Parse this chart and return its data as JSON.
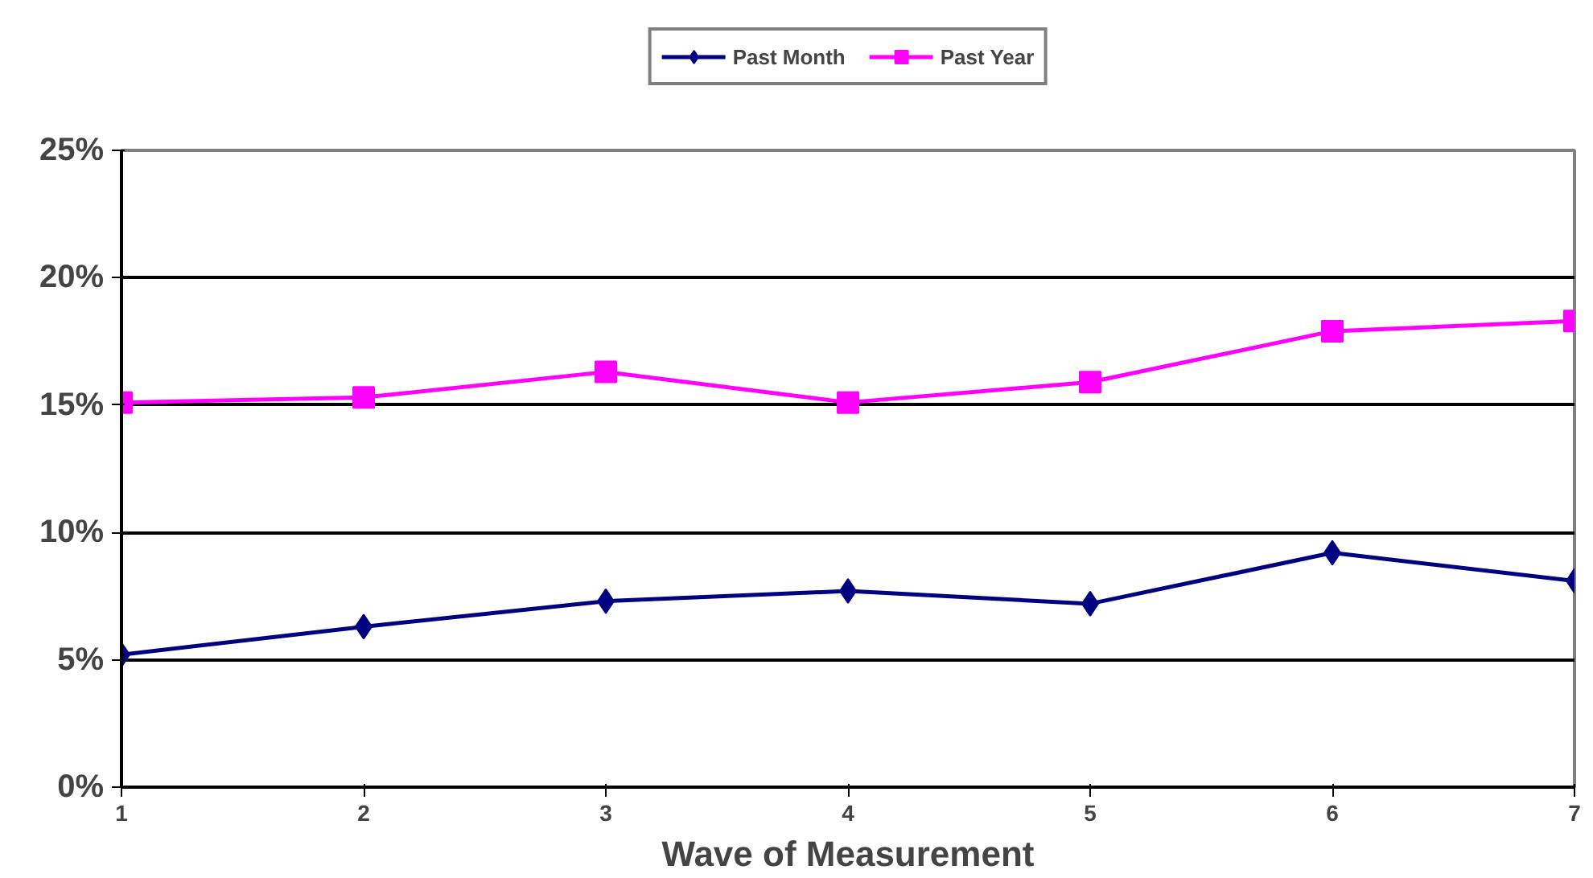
{
  "chart_data": {
    "type": "line",
    "xlabel": "Wave of Measurement",
    "x": [
      1,
      2,
      3,
      4,
      5,
      6,
      7
    ],
    "series": [
      {
        "name": "Past Month",
        "color": "#000080",
        "marker": "diamond",
        "values": [
          5.2,
          6.3,
          7.3,
          7.7,
          7.2,
          9.2,
          8.1
        ]
      },
      {
        "name": "Past Year",
        "color": "#ff00ff",
        "marker": "square",
        "values": [
          15.1,
          15.3,
          16.3,
          15.1,
          15.9,
          17.9,
          18.3
        ]
      }
    ],
    "xlim": [
      1,
      7
    ],
    "xticks": [
      1,
      2,
      3,
      4,
      5,
      6,
      7
    ],
    "ylim": [
      0,
      25
    ],
    "yticks": [
      {
        "value": 0,
        "label": "0%"
      },
      {
        "value": 5,
        "label": "5%"
      },
      {
        "value": 10,
        "label": "10%"
      },
      {
        "value": 15,
        "label": "15%"
      },
      {
        "value": 20,
        "label": "20%"
      },
      {
        "value": 25,
        "label": "25%"
      }
    ],
    "grid": "y",
    "legend": "top",
    "line_style": "solid"
  }
}
